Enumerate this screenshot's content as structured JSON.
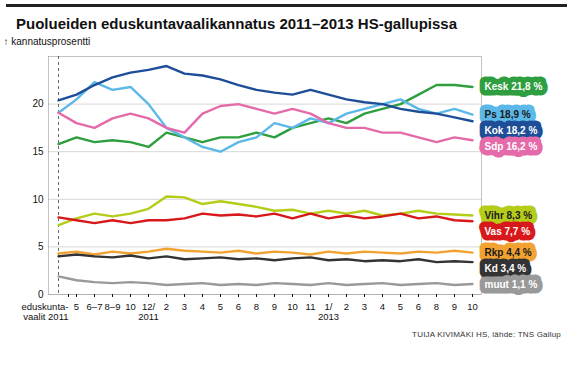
{
  "chart_data": {
    "type": "line",
    "title": "Puolueiden eduskuntavaalikannatus 2011–2013 HS-gallupissa",
    "y_label": "kannatusprosentti",
    "caption": "TUIJA KIVIMÄKI HS, lähde: TNS Gallup",
    "categories": [
      "eduskunta-\nvaalit 2011",
      "5",
      "6–7",
      "8–9",
      "10",
      "12/\n2011",
      "2",
      "3",
      "4",
      "5",
      "6",
      "8",
      "9",
      "10",
      "11",
      "1/\n2013",
      "2",
      "3",
      "4",
      "5",
      "6",
      "8",
      "9",
      "10"
    ],
    "ylim": [
      0,
      25
    ],
    "yticks": [
      0,
      5,
      10,
      15,
      20
    ],
    "grid": true,
    "series": [
      {
        "name": "Kesk",
        "color": "#2e9e3e",
        "values": [
          15.8,
          16.5,
          16.0,
          16.2,
          16.0,
          15.5,
          17.0,
          16.5,
          16.0,
          16.5,
          16.5,
          17.0,
          16.5,
          17.5,
          18.0,
          18.5,
          18.0,
          19.0,
          19.5,
          20.0,
          21.0,
          22.0,
          22.0,
          21.8
        ],
        "value_labels": [
          null,
          null,
          null,
          null,
          null,
          null,
          null,
          null,
          null,
          null,
          null,
          null,
          null,
          null,
          null,
          null,
          null,
          null,
          null,
          null,
          null,
          null,
          null,
          "21,8 %"
        ]
      },
      {
        "name": "Ps",
        "color": "#5bb8e8",
        "values": [
          19.1,
          20.5,
          22.3,
          21.5,
          21.8,
          20.0,
          17.5,
          16.5,
          15.5,
          15.0,
          16.0,
          16.5,
          18.0,
          17.5,
          18.5,
          18.0,
          19.0,
          19.5,
          20.0,
          20.5,
          19.5,
          19.0,
          19.5,
          18.9
        ],
        "value_labels": [
          null,
          null,
          null,
          null,
          null,
          null,
          null,
          null,
          null,
          null,
          null,
          null,
          null,
          null,
          null,
          null,
          null,
          null,
          null,
          null,
          null,
          null,
          null,
          "18,9 %"
        ]
      },
      {
        "name": "Kok",
        "color": "#1f4e99",
        "values": [
          20.4,
          21.0,
          22.0,
          22.8,
          23.3,
          23.6,
          24.0,
          23.2,
          23.0,
          22.6,
          22.0,
          21.5,
          21.2,
          21.0,
          21.5,
          21.0,
          20.5,
          20.2,
          20.0,
          19.5,
          19.2,
          19.0,
          18.6,
          18.2
        ],
        "value_labels": [
          null,
          null,
          null,
          null,
          null,
          null,
          null,
          null,
          null,
          null,
          null,
          null,
          null,
          null,
          null,
          null,
          null,
          null,
          null,
          null,
          null,
          null,
          null,
          "18,2 %"
        ]
      },
      {
        "name": "Sdp",
        "color": "#e46aa9",
        "values": [
          19.1,
          18.0,
          17.5,
          18.5,
          19.0,
          18.5,
          17.5,
          17.0,
          19.0,
          19.8,
          20.0,
          19.5,
          19.0,
          19.5,
          19.0,
          18.0,
          17.5,
          17.5,
          17.0,
          17.0,
          16.5,
          16.0,
          16.5,
          16.2
        ],
        "value_labels": [
          null,
          null,
          null,
          null,
          null,
          null,
          null,
          null,
          null,
          null,
          null,
          null,
          null,
          null,
          null,
          null,
          null,
          null,
          null,
          null,
          null,
          null,
          null,
          "16,2 %"
        ]
      },
      {
        "name": "Vihr",
        "color": "#b5cc18",
        "values": [
          7.3,
          8.0,
          8.5,
          8.2,
          8.5,
          9.0,
          10.3,
          10.2,
          9.5,
          9.8,
          9.5,
          9.2,
          8.8,
          8.9,
          8.5,
          8.8,
          8.5,
          8.8,
          8.3,
          8.5,
          8.8,
          8.5,
          8.4,
          8.3
        ],
        "value_labels": [
          null,
          null,
          null,
          null,
          null,
          null,
          null,
          null,
          null,
          null,
          null,
          null,
          null,
          null,
          null,
          null,
          null,
          null,
          null,
          null,
          null,
          null,
          null,
          "8,3 %"
        ]
      },
      {
        "name": "Vas",
        "color": "#d7191c",
        "values": [
          8.1,
          7.8,
          7.5,
          7.8,
          7.5,
          7.8,
          7.8,
          8.0,
          8.5,
          8.3,
          8.4,
          8.2,
          8.5,
          8.0,
          8.5,
          8.0,
          8.3,
          8.0,
          8.2,
          8.5,
          8.0,
          8.2,
          7.8,
          7.7
        ],
        "value_labels": [
          null,
          null,
          null,
          null,
          null,
          null,
          null,
          null,
          null,
          null,
          null,
          null,
          null,
          null,
          null,
          null,
          null,
          null,
          null,
          null,
          null,
          null,
          null,
          "7,7 %"
        ]
      },
      {
        "name": "Rkp",
        "color": "#f2a230",
        "values": [
          4.3,
          4.5,
          4.2,
          4.5,
          4.3,
          4.5,
          4.8,
          4.6,
          4.5,
          4.4,
          4.6,
          4.3,
          4.5,
          4.4,
          4.2,
          4.5,
          4.3,
          4.5,
          4.4,
          4.3,
          4.5,
          4.4,
          4.6,
          4.4
        ],
        "value_labels": [
          null,
          null,
          null,
          null,
          null,
          null,
          null,
          null,
          null,
          null,
          null,
          null,
          null,
          null,
          null,
          null,
          null,
          null,
          null,
          null,
          null,
          null,
          null,
          "4,4 %"
        ]
      },
      {
        "name": "Kd",
        "color": "#333333",
        "values": [
          4.0,
          4.2,
          4.0,
          3.9,
          4.1,
          3.8,
          4.0,
          3.7,
          3.8,
          3.9,
          3.7,
          3.8,
          3.6,
          3.8,
          3.9,
          3.6,
          3.7,
          3.5,
          3.6,
          3.5,
          3.7,
          3.4,
          3.5,
          3.4
        ],
        "value_labels": [
          null,
          null,
          null,
          null,
          null,
          null,
          null,
          null,
          null,
          null,
          null,
          null,
          null,
          null,
          null,
          null,
          null,
          null,
          null,
          null,
          null,
          null,
          null,
          "3,4 %"
        ]
      },
      {
        "name": "muut",
        "color": "#999999",
        "values": [
          1.9,
          1.5,
          1.3,
          1.2,
          1.3,
          1.2,
          1.0,
          1.1,
          1.2,
          1.0,
          1.1,
          1.0,
          1.2,
          1.1,
          1.0,
          1.2,
          1.0,
          1.1,
          1.2,
          1.0,
          1.1,
          1.2,
          1.0,
          1.1
        ],
        "value_labels": [
          null,
          null,
          null,
          null,
          null,
          null,
          null,
          null,
          null,
          null,
          null,
          null,
          null,
          null,
          null,
          null,
          null,
          null,
          null,
          null,
          null,
          null,
          null,
          "1,1 %"
        ]
      }
    ]
  }
}
